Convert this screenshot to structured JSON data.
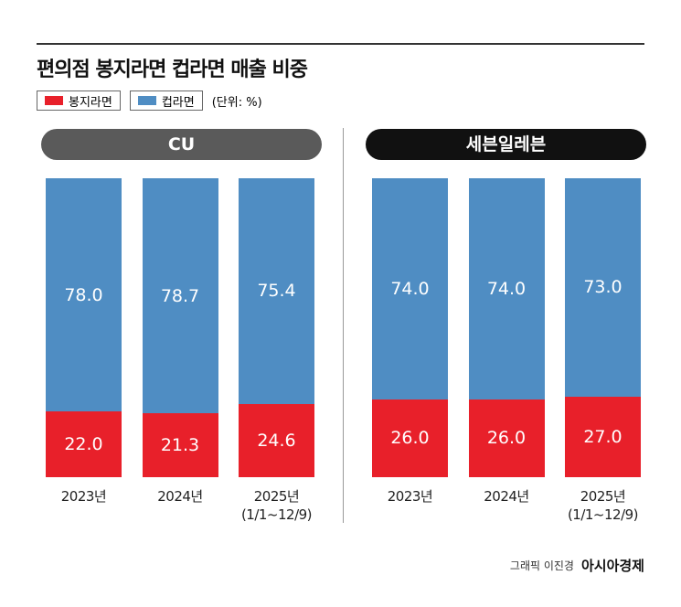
{
  "header": {
    "title": "편의점 봉지라면 컵라면 매출 비중",
    "unit": "(단위: %)"
  },
  "chart_data": [
    {
      "type": "bar",
      "stacked": true,
      "title": "CU",
      "title_color": "#5a5a5a",
      "categories": [
        "2023년",
        "2024년",
        "2025년\n(1/1~12/9)"
      ],
      "ylim": [
        0,
        100
      ],
      "series": [
        {
          "name": "봉지라면",
          "color": "#e8202a",
          "values": [
            22,
            21.3,
            24.6
          ],
          "value_labels": [
            "22.0",
            "21.3",
            "24.6"
          ]
        },
        {
          "name": "컵라면",
          "color": "#4f8dc3",
          "values": [
            78,
            78.7,
            75.4
          ],
          "value_labels": [
            "78.0",
            "78.7",
            "75.4"
          ]
        }
      ]
    },
    {
      "type": "bar",
      "stacked": true,
      "title": "세븐일레븐",
      "title_color": "#111111",
      "categories": [
        "2023년",
        "2024년",
        "2025년\n(1/1~12/9)"
      ],
      "ylim": [
        0,
        100
      ],
      "series": [
        {
          "name": "봉지라면",
          "color": "#e8202a",
          "values": [
            26,
            26,
            27
          ],
          "value_labels": [
            "26.0",
            "26.0",
            "27.0"
          ]
        },
        {
          "name": "컵라면",
          "color": "#4f8dc3",
          "values": [
            74,
            74,
            73
          ],
          "value_labels": [
            "74.0",
            "74.0",
            "73.0"
          ]
        }
      ]
    }
  ],
  "footer": {
    "credit": "그래픽 이진경",
    "brand": "아시아경제"
  }
}
